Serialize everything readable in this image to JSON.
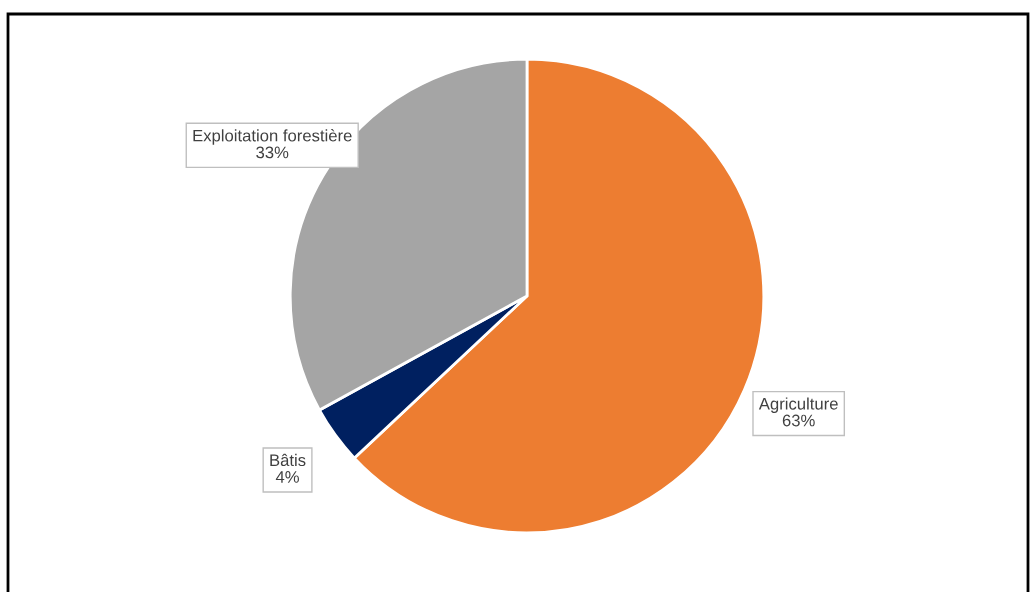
{
  "chart_data": {
    "type": "pie",
    "categories": [
      "Agriculture",
      "Bâtis",
      "Exploitation forestière"
    ],
    "values": [
      63,
      4,
      33
    ],
    "colors": [
      "#ed7d31",
      "#002060",
      "#a5a5a5"
    ],
    "value_labels": [
      "63%",
      "4%",
      "33%"
    ]
  }
}
